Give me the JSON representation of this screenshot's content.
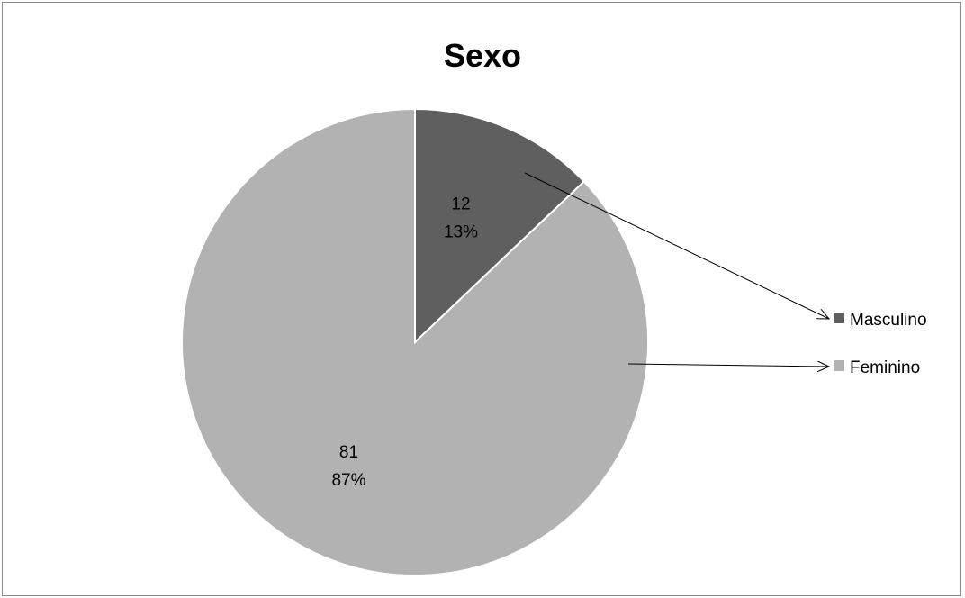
{
  "chart_data": {
    "type": "pie",
    "title": "Sexo",
    "categories": [
      "Masculino",
      "Feminino"
    ],
    "values": [
      12,
      81
    ],
    "percent_labels": [
      "13%",
      "87%"
    ],
    "colors": [
      "#5f5f5f",
      "#b2b2b2"
    ],
    "legend_position": "right",
    "start_angle_deg": 0,
    "direction": "clockwise"
  }
}
